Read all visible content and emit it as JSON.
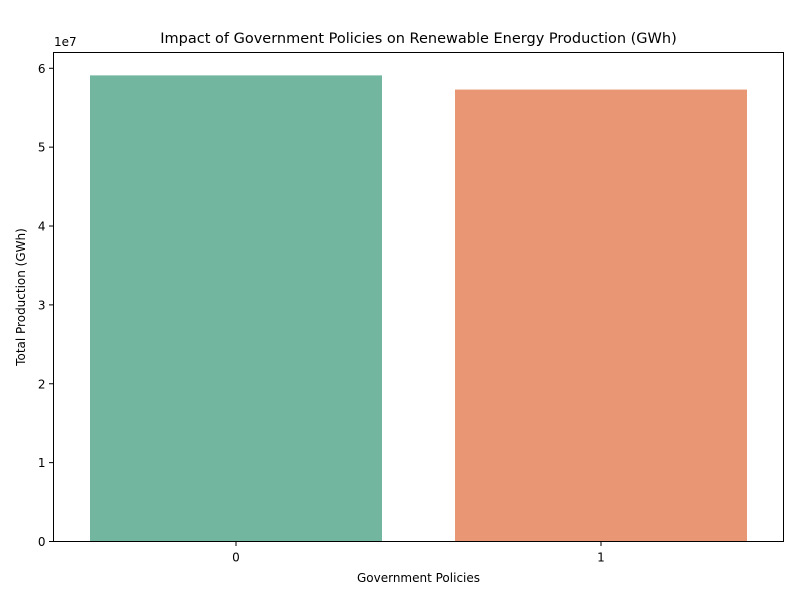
{
  "chart_data": {
    "type": "bar",
    "title": "Impact of Government Policies on Renewable Energy Production (GWh)",
    "xlabel": "Government Policies",
    "ylabel": "Total Production (GWh)",
    "categories": [
      "0",
      "1"
    ],
    "values": [
      59100000,
      57300000
    ],
    "colors": [
      "#73b6a0",
      "#e99674"
    ],
    "ylim": [
      0,
      62000000
    ],
    "yticks": [
      0,
      10000000,
      20000000,
      30000000,
      40000000,
      50000000,
      60000000
    ],
    "ytick_labels": [
      "0",
      "1",
      "2",
      "3",
      "4",
      "5",
      "6"
    ],
    "y_offset_label": "1e7",
    "grid": false,
    "legend": "none"
  }
}
